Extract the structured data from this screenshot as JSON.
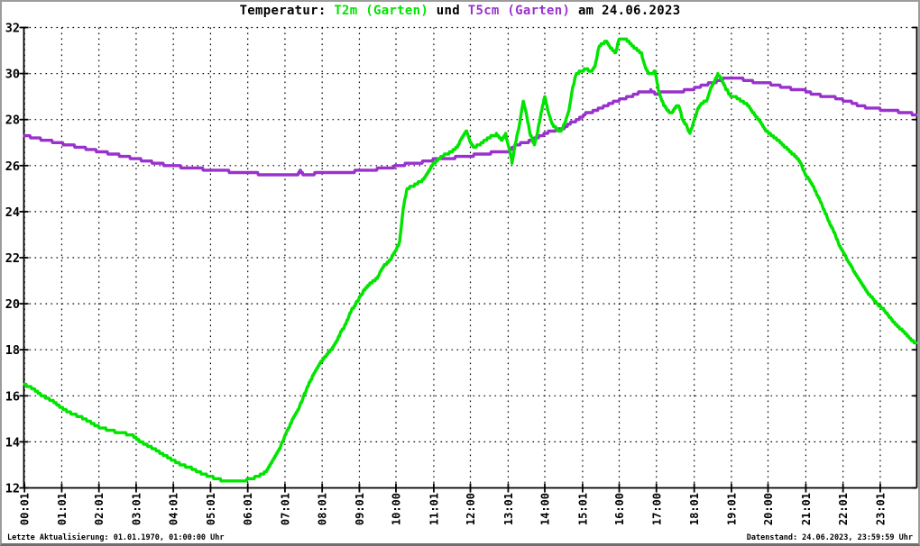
{
  "title": {
    "prefix": "Temperatur: ",
    "series1_label": "T2m (Garten)",
    "connector": " und ",
    "series2_label": "T5cm (Garten)",
    "suffix": " am 24.06.2023"
  },
  "status_bar": {
    "left": "Letzte Aktualisierung: 01.01.1970, 01:00:00 Uhr",
    "right": "Datenstand: 24.06.2023, 23:59:59 Uhr"
  },
  "colors": {
    "t2m_green": "#00e400",
    "t5cm_purple": "#9932cc",
    "grid": "#000000",
    "axis": "#000000",
    "background": "#ffffff",
    "frame": "#9c9c9c"
  },
  "chart_data": {
    "type": "line",
    "title": "Temperatur: T2m (Garten) und T5cm (Garten) am 24.06.2023",
    "date_shown": "24.06.2023",
    "ylim": [
      12,
      32
    ],
    "ytick_step": 2,
    "xlim_hours": [
      0,
      24
    ],
    "grid": "dotted",
    "legend_position": "in-title",
    "x_tick_labels": [
      "00:01",
      "01:01",
      "02:01",
      "03:01",
      "04:01",
      "05:01",
      "06:01",
      "07:01",
      "08:01",
      "09:01",
      "10:00",
      "11:01",
      "12:00",
      "13:01",
      "14:00",
      "15:01",
      "16:00",
      "17:00",
      "18:01",
      "19:01",
      "20:00",
      "21:01",
      "22:01",
      "23:01"
    ],
    "series": [
      {
        "name": "T2m (Garten)",
        "color": "#00e400",
        "points": [
          [
            0.02,
            16.5
          ],
          [
            0.25,
            16.3
          ],
          [
            0.5,
            16.0
          ],
          [
            0.75,
            15.8
          ],
          [
            1.0,
            15.5
          ],
          [
            1.25,
            15.25
          ],
          [
            1.5,
            15.1
          ],
          [
            1.75,
            14.9
          ],
          [
            2.0,
            14.65
          ],
          [
            2.3,
            14.5
          ],
          [
            2.6,
            14.4
          ],
          [
            2.9,
            14.3
          ],
          [
            3.05,
            14.1
          ],
          [
            3.25,
            13.9
          ],
          [
            3.5,
            13.7
          ],
          [
            3.75,
            13.45
          ],
          [
            4.0,
            13.2
          ],
          [
            4.25,
            13.0
          ],
          [
            4.5,
            12.85
          ],
          [
            4.75,
            12.65
          ],
          [
            5.0,
            12.5
          ],
          [
            5.3,
            12.35
          ],
          [
            5.6,
            12.25
          ],
          [
            5.9,
            12.3
          ],
          [
            6.1,
            12.4
          ],
          [
            6.3,
            12.5
          ],
          [
            6.5,
            12.7
          ],
          [
            6.7,
            13.2
          ],
          [
            6.9,
            13.8
          ],
          [
            7.0,
            14.2
          ],
          [
            7.2,
            14.9
          ],
          [
            7.4,
            15.5
          ],
          [
            7.6,
            16.3
          ],
          [
            7.8,
            17.0
          ],
          [
            8.0,
            17.5
          ],
          [
            8.2,
            17.9
          ],
          [
            8.35,
            18.2
          ],
          [
            8.5,
            18.7
          ],
          [
            8.65,
            19.1
          ],
          [
            8.8,
            19.7
          ],
          [
            9.0,
            20.2
          ],
          [
            9.15,
            20.6
          ],
          [
            9.3,
            20.85
          ],
          [
            9.5,
            21.1
          ],
          [
            9.65,
            21.6
          ],
          [
            9.8,
            21.8
          ],
          [
            10.0,
            22.3
          ],
          [
            10.1,
            22.7
          ],
          [
            10.2,
            24.2
          ],
          [
            10.3,
            25.0
          ],
          [
            10.45,
            25.1
          ],
          [
            10.6,
            25.25
          ],
          [
            10.75,
            25.4
          ],
          [
            10.85,
            25.7
          ],
          [
            11.0,
            26.05
          ],
          [
            11.15,
            26.3
          ],
          [
            11.3,
            26.45
          ],
          [
            11.5,
            26.6
          ],
          [
            11.65,
            26.8
          ],
          [
            11.8,
            27.3
          ],
          [
            11.9,
            27.5
          ],
          [
            12.0,
            27.0
          ],
          [
            12.1,
            26.8
          ],
          [
            12.25,
            26.9
          ],
          [
            12.4,
            27.1
          ],
          [
            12.55,
            27.25
          ],
          [
            12.7,
            27.35
          ],
          [
            12.85,
            27.1
          ],
          [
            12.95,
            27.35
          ],
          [
            13.05,
            26.7
          ],
          [
            13.12,
            26.1
          ],
          [
            13.2,
            26.9
          ],
          [
            13.3,
            27.6
          ],
          [
            13.42,
            28.8
          ],
          [
            13.5,
            28.3
          ],
          [
            13.6,
            27.4
          ],
          [
            13.72,
            26.9
          ],
          [
            13.8,
            27.4
          ],
          [
            13.9,
            28.3
          ],
          [
            14.0,
            29.0
          ],
          [
            14.1,
            28.3
          ],
          [
            14.2,
            27.8
          ],
          [
            14.32,
            27.6
          ],
          [
            14.42,
            27.45
          ],
          [
            14.55,
            27.9
          ],
          [
            14.65,
            28.4
          ],
          [
            14.75,
            29.4
          ],
          [
            14.85,
            30.0
          ],
          [
            15.0,
            30.1
          ],
          [
            15.1,
            30.2
          ],
          [
            15.25,
            30.1
          ],
          [
            15.35,
            30.3
          ],
          [
            15.45,
            31.15
          ],
          [
            15.55,
            31.3
          ],
          [
            15.65,
            31.4
          ],
          [
            15.8,
            31.05
          ],
          [
            15.9,
            30.9
          ],
          [
            16.0,
            31.5
          ],
          [
            16.1,
            31.5
          ],
          [
            16.2,
            31.45
          ],
          [
            16.3,
            31.3
          ],
          [
            16.4,
            31.15
          ],
          [
            16.5,
            31.0
          ],
          [
            16.6,
            30.85
          ],
          [
            16.7,
            30.3
          ],
          [
            16.8,
            29.95
          ],
          [
            16.9,
            30.0
          ],
          [
            16.97,
            30.1
          ],
          [
            17.05,
            29.3
          ],
          [
            17.15,
            28.8
          ],
          [
            17.25,
            28.5
          ],
          [
            17.4,
            28.25
          ],
          [
            17.5,
            28.5
          ],
          [
            17.6,
            28.65
          ],
          [
            17.7,
            28.0
          ],
          [
            17.8,
            27.75
          ],
          [
            17.9,
            27.4
          ],
          [
            18.0,
            27.9
          ],
          [
            18.1,
            28.4
          ],
          [
            18.2,
            28.7
          ],
          [
            18.35,
            28.8
          ],
          [
            18.45,
            29.3
          ],
          [
            18.55,
            29.65
          ],
          [
            18.65,
            29.95
          ],
          [
            18.75,
            29.75
          ],
          [
            18.85,
            29.4
          ],
          [
            19.0,
            29.0
          ],
          [
            19.15,
            28.95
          ],
          [
            19.3,
            28.8
          ],
          [
            19.45,
            28.65
          ],
          [
            19.6,
            28.3
          ],
          [
            19.75,
            28.0
          ],
          [
            19.9,
            27.6
          ],
          [
            20.1,
            27.3
          ],
          [
            20.3,
            27.05
          ],
          [
            20.5,
            26.75
          ],
          [
            20.7,
            26.45
          ],
          [
            20.85,
            26.2
          ],
          [
            21.0,
            25.6
          ],
          [
            21.15,
            25.3
          ],
          [
            21.3,
            24.8
          ],
          [
            21.45,
            24.3
          ],
          [
            21.6,
            23.7
          ],
          [
            21.75,
            23.2
          ],
          [
            21.9,
            22.6
          ],
          [
            22.1,
            22.0
          ],
          [
            22.3,
            21.45
          ],
          [
            22.5,
            20.9
          ],
          [
            22.7,
            20.45
          ],
          [
            22.9,
            20.05
          ],
          [
            23.1,
            19.75
          ],
          [
            23.3,
            19.35
          ],
          [
            23.5,
            19.0
          ],
          [
            23.7,
            18.7
          ],
          [
            23.85,
            18.45
          ],
          [
            23.98,
            18.25
          ]
        ]
      },
      {
        "name": "T5cm (Garten)",
        "color": "#9932cc",
        "points": [
          [
            0.02,
            27.3
          ],
          [
            0.3,
            27.2
          ],
          [
            0.6,
            27.1
          ],
          [
            0.9,
            27.0
          ],
          [
            1.2,
            26.9
          ],
          [
            1.5,
            26.8
          ],
          [
            1.8,
            26.7
          ],
          [
            2.1,
            26.6
          ],
          [
            2.4,
            26.5
          ],
          [
            2.7,
            26.4
          ],
          [
            3.0,
            26.3
          ],
          [
            3.3,
            26.2
          ],
          [
            3.6,
            26.1
          ],
          [
            3.9,
            26.0
          ],
          [
            4.2,
            25.95
          ],
          [
            4.5,
            25.9
          ],
          [
            4.8,
            25.85
          ],
          [
            5.1,
            25.8
          ],
          [
            5.5,
            25.75
          ],
          [
            5.9,
            25.7
          ],
          [
            6.3,
            25.65
          ],
          [
            6.7,
            25.6
          ],
          [
            7.1,
            25.55
          ],
          [
            7.35,
            25.55
          ],
          [
            7.42,
            25.8
          ],
          [
            7.5,
            25.65
          ],
          [
            7.8,
            25.65
          ],
          [
            8.1,
            25.7
          ],
          [
            8.5,
            25.7
          ],
          [
            8.9,
            25.75
          ],
          [
            9.2,
            25.8
          ],
          [
            9.5,
            25.85
          ],
          [
            9.8,
            25.9
          ],
          [
            10.1,
            26.0
          ],
          [
            10.4,
            26.1
          ],
          [
            10.7,
            26.15
          ],
          [
            11.0,
            26.25
          ],
          [
            11.3,
            26.3
          ],
          [
            11.6,
            26.35
          ],
          [
            11.9,
            26.4
          ],
          [
            12.1,
            26.45
          ],
          [
            12.4,
            26.5
          ],
          [
            12.7,
            26.6
          ],
          [
            12.9,
            26.6
          ],
          [
            13.05,
            26.65
          ],
          [
            13.2,
            26.85
          ],
          [
            13.35,
            26.95
          ],
          [
            13.5,
            27.0
          ],
          [
            13.7,
            27.15
          ],
          [
            13.9,
            27.3
          ],
          [
            14.1,
            27.45
          ],
          [
            14.3,
            27.55
          ],
          [
            14.5,
            27.6
          ],
          [
            14.7,
            27.85
          ],
          [
            14.9,
            28.0
          ],
          [
            15.1,
            28.25
          ],
          [
            15.3,
            28.35
          ],
          [
            15.5,
            28.5
          ],
          [
            15.7,
            28.65
          ],
          [
            15.9,
            28.8
          ],
          [
            16.1,
            28.9
          ],
          [
            16.3,
            29.0
          ],
          [
            16.5,
            29.15
          ],
          [
            16.7,
            29.2
          ],
          [
            16.85,
            29.25
          ],
          [
            17.0,
            29.1
          ],
          [
            17.15,
            29.2
          ],
          [
            17.35,
            29.2
          ],
          [
            17.55,
            29.2
          ],
          [
            17.75,
            29.25
          ],
          [
            17.95,
            29.3
          ],
          [
            18.1,
            29.4
          ],
          [
            18.3,
            29.5
          ],
          [
            18.5,
            29.6
          ],
          [
            18.7,
            29.7
          ],
          [
            18.85,
            29.78
          ],
          [
            19.0,
            29.8
          ],
          [
            19.2,
            29.8
          ],
          [
            19.4,
            29.72
          ],
          [
            19.6,
            29.65
          ],
          [
            19.8,
            29.62
          ],
          [
            20.0,
            29.58
          ],
          [
            20.2,
            29.5
          ],
          [
            20.4,
            29.42
          ],
          [
            20.6,
            29.35
          ],
          [
            20.8,
            29.3
          ],
          [
            21.0,
            29.25
          ],
          [
            21.2,
            29.12
          ],
          [
            21.4,
            29.05
          ],
          [
            21.6,
            29.0
          ],
          [
            21.8,
            28.95
          ],
          [
            22.0,
            28.85
          ],
          [
            22.2,
            28.78
          ],
          [
            22.4,
            28.65
          ],
          [
            22.6,
            28.55
          ],
          [
            22.8,
            28.5
          ],
          [
            23.0,
            28.45
          ],
          [
            23.2,
            28.4
          ],
          [
            23.4,
            28.37
          ],
          [
            23.6,
            28.33
          ],
          [
            23.8,
            28.28
          ],
          [
            23.98,
            28.2
          ]
        ]
      }
    ]
  }
}
